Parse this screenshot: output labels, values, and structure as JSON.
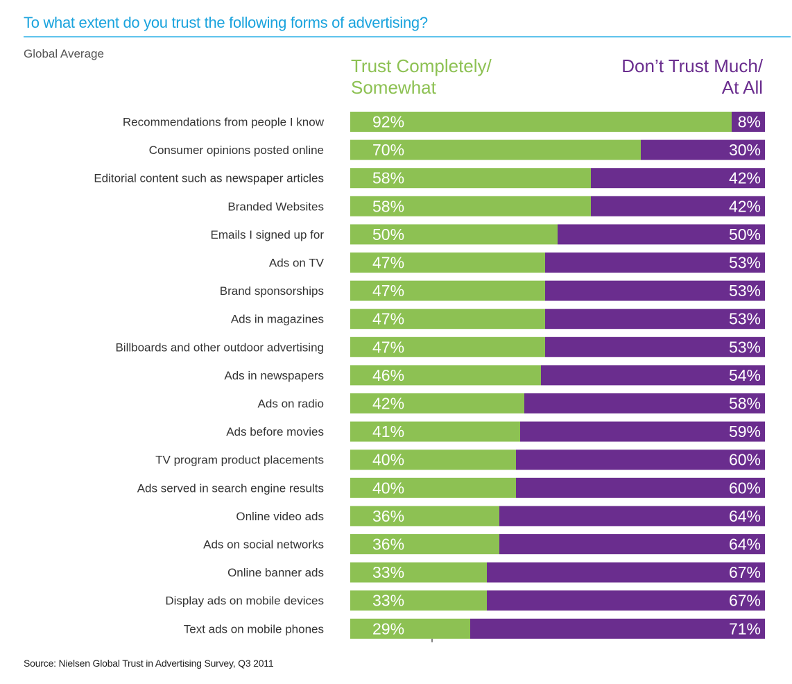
{
  "chart_data": {
    "type": "bar",
    "orientation": "horizontal",
    "stacked": true,
    "title": "To what extent do you trust the following forms of advertising?",
    "subtitle": "Global Average",
    "legend": [
      {
        "name_lines": [
          "Trust Completely/",
          "Somewhat"
        ],
        "color": "#8dc153"
      },
      {
        "name_lines": [
          "Don’t Trust Much/",
          "At All"
        ],
        "color": "#6a2d8e"
      }
    ],
    "categories": [
      "Recommendations from people I know",
      "Consumer opinions posted online",
      "Editorial content such as newspaper articles",
      "Branded Websites",
      "Emails I signed up for",
      "Ads on TV",
      "Brand sponsorships",
      "Ads in magazines",
      "Billboards and other outdoor advertising",
      "Ads in newspapers",
      "Ads on radio",
      "Ads before movies",
      "TV program product placements",
      "Ads served in search engine results",
      "Online video ads",
      "Ads on social networks",
      "Online banner ads",
      "Display ads on mobile devices",
      "Text ads on mobile phones"
    ],
    "series": [
      {
        "name": "Trust Completely/Somewhat",
        "values": [
          92,
          70,
          58,
          58,
          50,
          47,
          47,
          47,
          47,
          46,
          42,
          41,
          40,
          40,
          36,
          36,
          33,
          33,
          29
        ],
        "labels": [
          "92%",
          "70%",
          "58%",
          "58%",
          "50%",
          "47%",
          "47%",
          "47%",
          "47%",
          "46%",
          "42%",
          "41%",
          "40%",
          "40%",
          "36%",
          "36%",
          "33%",
          "33%",
          "29%"
        ]
      },
      {
        "name": "Don't Trust Much/At All",
        "values": [
          8,
          30,
          42,
          42,
          50,
          53,
          53,
          53,
          53,
          54,
          58,
          59,
          60,
          60,
          64,
          64,
          67,
          67,
          71
        ],
        "labels": [
          "8%",
          "30%",
          "42%",
          "42%",
          "50%",
          "53%",
          "53%",
          "53%",
          "53%",
          "54%",
          "58%",
          "59%",
          "60%",
          "60%",
          "64%",
          "64%",
          "67%",
          "67%",
          "71%"
        ]
      }
    ],
    "xlim": [
      0,
      100
    ],
    "unit": "%",
    "source": "Source: Nielsen Global Trust in Advertising Survey, Q3 2011"
  }
}
